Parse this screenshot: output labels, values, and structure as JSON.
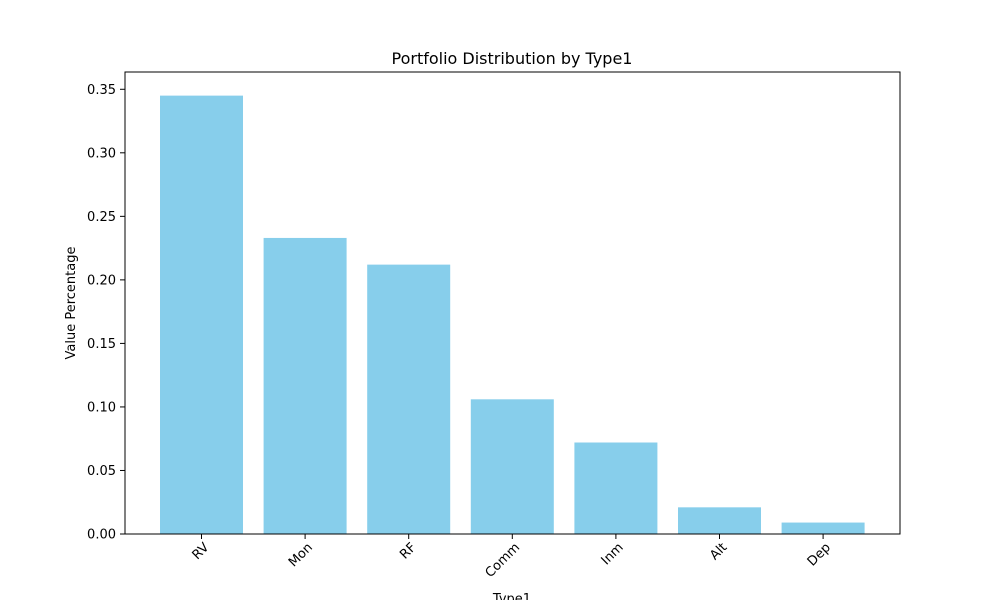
{
  "chart_data": {
    "type": "bar",
    "title": "Portfolio Distribution by Type1",
    "xlabel": "Type1",
    "ylabel": "Value Percentage",
    "categories": [
      "RV",
      "Mon",
      "RF",
      "Comm",
      "Inm",
      "Alt",
      "Dep"
    ],
    "values": [
      0.345,
      0.233,
      0.212,
      0.106,
      0.072,
      0.021,
      0.009
    ],
    "ylim": [
      0,
      0.3636
    ],
    "yticks": [
      0.0,
      0.05,
      0.1,
      0.15,
      0.2,
      0.25,
      0.3,
      0.35
    ],
    "ytick_labels": [
      "0.00",
      "0.05",
      "0.10",
      "0.15",
      "0.20",
      "0.25",
      "0.30",
      "0.35"
    ],
    "grid": false,
    "bar_color": "#87CEEB"
  }
}
